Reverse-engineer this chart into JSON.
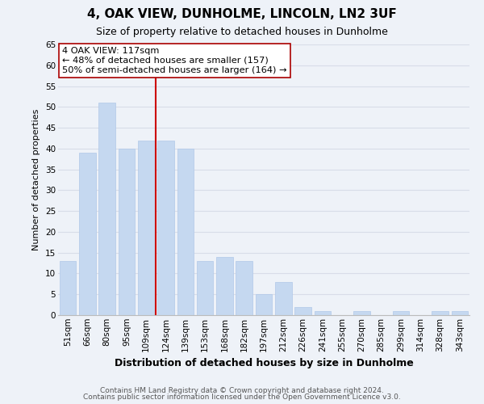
{
  "title": "4, OAK VIEW, DUNHOLME, LINCOLN, LN2 3UF",
  "subtitle": "Size of property relative to detached houses in Dunholme",
  "xlabel": "Distribution of detached houses by size in Dunholme",
  "ylabel": "Number of detached properties",
  "categories": [
    "51sqm",
    "66sqm",
    "80sqm",
    "95sqm",
    "109sqm",
    "124sqm",
    "139sqm",
    "153sqm",
    "168sqm",
    "182sqm",
    "197sqm",
    "212sqm",
    "226sqm",
    "241sqm",
    "255sqm",
    "270sqm",
    "285sqm",
    "299sqm",
    "314sqm",
    "328sqm",
    "343sqm"
  ],
  "values": [
    13,
    39,
    51,
    40,
    42,
    42,
    40,
    13,
    14,
    13,
    5,
    8,
    2,
    1,
    0,
    1,
    0,
    1,
    0,
    1,
    1
  ],
  "bar_color": "#c5d8f0",
  "bar_edge_color": "#b0c8e8",
  "grid_color": "#d8dde8",
  "vline_color": "#cc0000",
  "annotation_line1": "4 OAK VIEW: 117sqm",
  "annotation_line2": "← 48% of detached houses are smaller (157)",
  "annotation_line3": "50% of semi-detached houses are larger (164) →",
  "annotation_box_edgecolor": "#aa0000",
  "annotation_box_facecolor": "#ffffff",
  "ylim": [
    0,
    65
  ],
  "yticks": [
    0,
    5,
    10,
    15,
    20,
    25,
    30,
    35,
    40,
    45,
    50,
    55,
    60,
    65
  ],
  "footer_line1": "Contains HM Land Registry data © Crown copyright and database right 2024.",
  "footer_line2": "Contains public sector information licensed under the Open Government Licence v3.0.",
  "background_color": "#eef2f8",
  "plot_bg_color": "#eef2f8",
  "title_fontsize": 11,
  "subtitle_fontsize": 9,
  "ylabel_fontsize": 8,
  "xlabel_fontsize": 9,
  "tick_fontsize": 7.5,
  "footer_fontsize": 6.5
}
